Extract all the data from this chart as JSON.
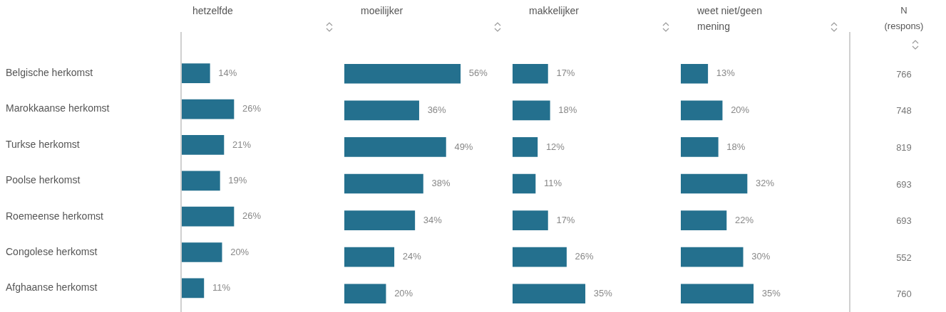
{
  "chart_data": [
    {
      "type": "bar",
      "orientation": "horizontal",
      "title": "hetzelfde",
      "categories": [
        "Belgische herkomst",
        "Marokkaanse herkomst",
        "Turkse herkomst",
        "Poolse herkomst",
        "Roemeense herkomst",
        "Congolese herkomst",
        "Afghaanse herkomst"
      ],
      "values": [
        14,
        26,
        21,
        19,
        26,
        20,
        11
      ],
      "value_labels": [
        "14%",
        "26%",
        "21%",
        "19%",
        "26%",
        "20%",
        "11%"
      ],
      "color": "#24708e",
      "tick_labels": "y"
    },
    {
      "type": "bar",
      "orientation": "horizontal",
      "title": "moeilijker",
      "values": [
        56,
        36,
        49,
        38,
        34,
        24,
        20
      ],
      "value_labels": [
        "56%",
        "36%",
        "49%",
        "38%",
        "34%",
        "24%",
        "20%"
      ],
      "color": "#24708e",
      "tick_labels": false
    },
    {
      "type": "bar",
      "orientation": "horizontal",
      "title": "makkelijker",
      "values": [
        17,
        18,
        12,
        11,
        17,
        26,
        35
      ],
      "value_labels": [
        "17%",
        "18%",
        "12%",
        "11%",
        "17%",
        "26%",
        "35%"
      ],
      "color": "#24708e",
      "tick_labels": false
    },
    {
      "type": "bar",
      "orientation": "horizontal",
      "title": "weet niet/geen mening",
      "values": [
        13,
        20,
        18,
        32,
        22,
        30,
        35
      ],
      "value_labels": [
        "13%",
        "20%",
        "18%",
        "32%",
        "22%",
        "30%",
        "35%"
      ],
      "color": "#24708e",
      "tick_labels": false
    },
    {
      "type": "other",
      "title": "N (respons)",
      "annotations": [
        "766",
        "748",
        "819",
        "693",
        "693",
        "552",
        "760"
      ]
    }
  ]
}
